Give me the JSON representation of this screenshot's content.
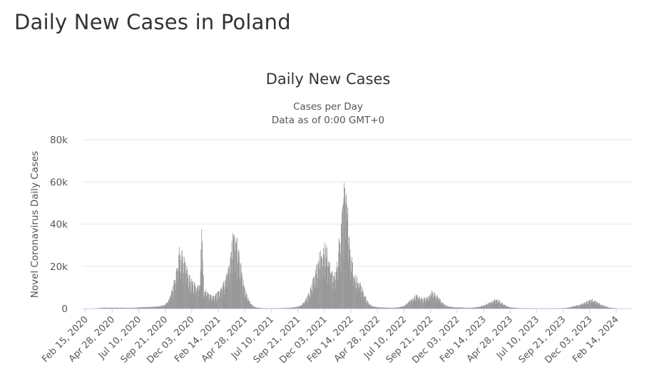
{
  "page": {
    "title": "Daily New Cases in Poland"
  },
  "chart_data": {
    "type": "bar",
    "title": "Daily New Cases",
    "subtitle_lines": [
      "Cases per Day",
      "Data as of 0:00 GMT+0"
    ],
    "xlabel": "",
    "ylabel": "Novel Coronavirus Daily Cases",
    "ylim": [
      0,
      80000
    ],
    "yticks": [
      0,
      20000,
      40000,
      60000,
      80000
    ],
    "ytick_labels": [
      "0",
      "20k",
      "40k",
      "60k",
      "80k"
    ],
    "xlim": [
      "2020-02-15",
      "2024-03-20"
    ],
    "xtick_labels": [
      "Feb 15, 2020",
      "Apr 28, 2020",
      "Jul 10, 2020",
      "Sep 21, 2020",
      "Dec 03, 2020",
      "Feb 14, 2021",
      "Apr 28, 2021",
      "Jul 10, 2021",
      "Sep 21, 2021",
      "Dec 03, 2021",
      "Feb 14, 2022",
      "Apr 28, 2022",
      "Jul 10, 2022",
      "Sep 21, 2022",
      "Dec 03, 2022",
      "Feb 14, 2023",
      "Apr 28, 2023",
      "Jul 10, 2023",
      "Sep 21, 2023",
      "Dec 03, 2023",
      "Feb 14, 2024"
    ],
    "grid": true,
    "bar_color": "#999999",
    "series": [
      {
        "values": [
          {
            "x": "2020-03-15",
            "y": 0
          },
          {
            "x": "2020-04-15",
            "y": 400
          },
          {
            "x": "2020-06-01",
            "y": 350
          },
          {
            "x": "2020-07-01",
            "y": 300
          },
          {
            "x": "2020-07-20",
            "y": 600
          },
          {
            "x": "2020-08-10",
            "y": 700
          },
          {
            "x": "2020-08-25",
            "y": 800
          },
          {
            "x": "2020-09-10",
            "y": 1000
          },
          {
            "x": "2020-09-25",
            "y": 1600
          },
          {
            "x": "2020-10-05",
            "y": 3500
          },
          {
            "x": "2020-10-15",
            "y": 8000
          },
          {
            "x": "2020-10-22",
            "y": 13000
          },
          {
            "x": "2020-10-29",
            "y": 20000
          },
          {
            "x": "2020-11-04",
            "y": 26000
          },
          {
            "x": "2020-11-07",
            "y": 27000
          },
          {
            "x": "2020-11-12",
            "y": 25000
          },
          {
            "x": "2020-11-15",
            "y": 24000
          },
          {
            "x": "2020-11-20",
            "y": 22000
          },
          {
            "x": "2020-11-26",
            "y": 17000
          },
          {
            "x": "2020-12-03",
            "y": 14000
          },
          {
            "x": "2020-12-10",
            "y": 12000
          },
          {
            "x": "2020-12-17",
            "y": 11000
          },
          {
            "x": "2020-12-24",
            "y": 10000
          },
          {
            "x": "2020-12-31",
            "y": 12000
          },
          {
            "x": "2021-01-04",
            "y": 37500
          },
          {
            "x": "2021-01-10",
            "y": 9000
          },
          {
            "x": "2021-01-17",
            "y": 8000
          },
          {
            "x": "2021-01-24",
            "y": 7000
          },
          {
            "x": "2021-01-31",
            "y": 6000
          },
          {
            "x": "2021-02-07",
            "y": 6000
          },
          {
            "x": "2021-02-14",
            "y": 6500
          },
          {
            "x": "2021-02-21",
            "y": 8000
          },
          {
            "x": "2021-02-28",
            "y": 10000
          },
          {
            "x": "2021-03-07",
            "y": 13000
          },
          {
            "x": "2021-03-14",
            "y": 17000
          },
          {
            "x": "2021-03-21",
            "y": 24000
          },
          {
            "x": "2021-03-28",
            "y": 30000
          },
          {
            "x": "2021-04-02",
            "y": 35000
          },
          {
            "x": "2021-04-07",
            "y": 33000
          },
          {
            "x": "2021-04-14",
            "y": 27000
          },
          {
            "x": "2021-04-21",
            "y": 20000
          },
          {
            "x": "2021-04-28",
            "y": 12000
          },
          {
            "x": "2021-05-05",
            "y": 7000
          },
          {
            "x": "2021-05-12",
            "y": 4000
          },
          {
            "x": "2021-05-19",
            "y": 2000
          },
          {
            "x": "2021-05-26",
            "y": 1000
          },
          {
            "x": "2021-06-05",
            "y": 400
          },
          {
            "x": "2021-06-20",
            "y": 150
          },
          {
            "x": "2021-07-10",
            "y": 100
          },
          {
            "x": "2021-08-01",
            "y": 150
          },
          {
            "x": "2021-08-20",
            "y": 250
          },
          {
            "x": "2021-09-05",
            "y": 450
          },
          {
            "x": "2021-09-21",
            "y": 800
          },
          {
            "x": "2021-10-01",
            "y": 1500
          },
          {
            "x": "2021-10-10",
            "y": 3000
          },
          {
            "x": "2021-10-20",
            "y": 6000
          },
          {
            "x": "2021-10-27",
            "y": 9000
          },
          {
            "x": "2021-11-03",
            "y": 13000
          },
          {
            "x": "2021-11-10",
            "y": 18000
          },
          {
            "x": "2021-11-17",
            "y": 22000
          },
          {
            "x": "2021-11-24",
            "y": 26000
          },
          {
            "x": "2021-12-01",
            "y": 28000
          },
          {
            "x": "2021-12-08",
            "y": 27000
          },
          {
            "x": "2021-12-15",
            "y": 23000
          },
          {
            "x": "2021-12-22",
            "y": 18000
          },
          {
            "x": "2021-12-29",
            "y": 14000
          },
          {
            "x": "2022-01-05",
            "y": 17000
          },
          {
            "x": "2022-01-12",
            "y": 30000
          },
          {
            "x": "2022-01-19",
            "y": 40000
          },
          {
            "x": "2022-01-24",
            "y": 50000
          },
          {
            "x": "2022-01-27",
            "y": 57000
          },
          {
            "x": "2022-01-31",
            "y": 53000
          },
          {
            "x": "2022-02-04",
            "y": 45000
          },
          {
            "x": "2022-02-10",
            "y": 30000
          },
          {
            "x": "2022-02-17",
            "y": 20000
          },
          {
            "x": "2022-02-24",
            "y": 15000
          },
          {
            "x": "2022-03-03",
            "y": 13000
          },
          {
            "x": "2022-03-10",
            "y": 12000
          },
          {
            "x": "2022-03-17",
            "y": 9000
          },
          {
            "x": "2022-03-24",
            "y": 6000
          },
          {
            "x": "2022-03-31",
            "y": 3000
          },
          {
            "x": "2022-04-10",
            "y": 1200
          },
          {
            "x": "2022-04-28",
            "y": 600
          },
          {
            "x": "2022-05-20",
            "y": 400
          },
          {
            "x": "2022-06-10",
            "y": 300
          },
          {
            "x": "2022-06-30",
            "y": 800
          },
          {
            "x": "2022-07-10",
            "y": 1500
          },
          {
            "x": "2022-07-20",
            "y": 3000
          },
          {
            "x": "2022-07-30",
            "y": 4500
          },
          {
            "x": "2022-08-10",
            "y": 6000
          },
          {
            "x": "2022-08-20",
            "y": 5000
          },
          {
            "x": "2022-08-30",
            "y": 4500
          },
          {
            "x": "2022-09-10",
            "y": 5500
          },
          {
            "x": "2022-09-21",
            "y": 7500
          },
          {
            "x": "2022-09-30",
            "y": 6500
          },
          {
            "x": "2022-10-10",
            "y": 5000
          },
          {
            "x": "2022-10-20",
            "y": 2500
          },
          {
            "x": "2022-11-01",
            "y": 1200
          },
          {
            "x": "2022-11-20",
            "y": 600
          },
          {
            "x": "2022-12-10",
            "y": 500
          },
          {
            "x": "2022-12-25",
            "y": 300
          },
          {
            "x": "2023-01-10",
            "y": 400
          },
          {
            "x": "2023-01-25",
            "y": 700
          },
          {
            "x": "2023-02-10",
            "y": 1500
          },
          {
            "x": "2023-02-24",
            "y": 2500
          },
          {
            "x": "2023-03-05",
            "y": 3500
          },
          {
            "x": "2023-03-12",
            "y": 4200
          },
          {
            "x": "2023-03-20",
            "y": 4000
          },
          {
            "x": "2023-03-28",
            "y": 3000
          },
          {
            "x": "2023-04-05",
            "y": 2000
          },
          {
            "x": "2023-04-15",
            "y": 1000
          },
          {
            "x": "2023-04-28",
            "y": 400
          },
          {
            "x": "2023-05-20",
            "y": 150
          },
          {
            "x": "2023-07-10",
            "y": 60
          },
          {
            "x": "2023-08-20",
            "y": 80
          },
          {
            "x": "2023-09-10",
            "y": 150
          },
          {
            "x": "2023-09-21",
            "y": 250
          },
          {
            "x": "2023-10-01",
            "y": 600
          },
          {
            "x": "2023-10-10",
            "y": 1000
          },
          {
            "x": "2023-10-20",
            "y": 1500
          },
          {
            "x": "2023-11-01",
            "y": 2000
          },
          {
            "x": "2023-11-10",
            "y": 2800
          },
          {
            "x": "2023-11-20",
            "y": 3500
          },
          {
            "x": "2023-11-27",
            "y": 4200
          },
          {
            "x": "2023-12-03",
            "y": 4000
          },
          {
            "x": "2023-12-10",
            "y": 3500
          },
          {
            "x": "2023-12-17",
            "y": 2800
          },
          {
            "x": "2023-12-24",
            "y": 2000
          },
          {
            "x": "2024-01-05",
            "y": 1000
          },
          {
            "x": "2024-01-20",
            "y": 300
          },
          {
            "x": "2024-02-05",
            "y": 100
          }
        ]
      }
    ]
  }
}
